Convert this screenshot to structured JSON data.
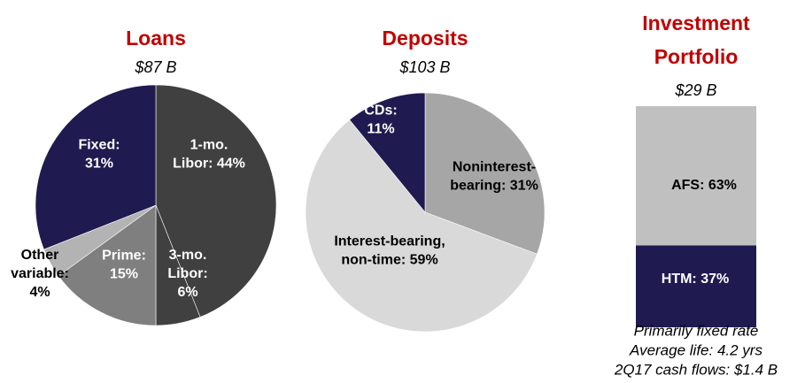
{
  "chart_data": [
    {
      "type": "pie",
      "title": [
        "Loans"
      ],
      "subtitle": "$87 B",
      "values": [
        44,
        6,
        15,
        4,
        31
      ],
      "value_labels": [
        [
          "1-mo.",
          "Libor: 44%"
        ],
        [
          "3-mo.",
          "Libor:",
          "6%"
        ],
        [
          "Prime:",
          "15%"
        ],
        [
          "Other",
          "variable:",
          "4%"
        ],
        [
          "Fixed:",
          "31%"
        ]
      ],
      "colors": [
        "#404040",
        "#404040",
        "#7f7f7f",
        "#b3b3b3",
        "#1f1a4f"
      ],
      "label_colors": [
        "#ffffff",
        "#ffffff",
        "#ffffff",
        "#000000",
        "#ffffff"
      ]
    },
    {
      "type": "pie",
      "title": [
        "Deposits"
      ],
      "subtitle": "$103 B",
      "values": [
        31,
        59,
        11
      ],
      "value_labels": [
        [
          "Noninterest-",
          "bearing: 31%"
        ],
        [
          "Interest-bearing,",
          "non-time: 59%"
        ],
        [
          "CDs:",
          "11%"
        ]
      ],
      "colors": [
        "#a6a6a6",
        "#d9d9d9",
        "#1f1a4f"
      ],
      "label_colors": [
        "#000000",
        "#000000",
        "#ffffff"
      ]
    },
    {
      "type": "bar",
      "title": [
        "Investment",
        "Portfolio"
      ],
      "subtitle": "$29 B",
      "values": [
        37,
        63
      ],
      "value_labels": [
        [
          "HTM: 37%"
        ],
        [
          "AFS: 63%"
        ]
      ],
      "colors": [
        "#1f1a4f",
        "#c0c0c0"
      ],
      "label_colors": [
        "#ffffff",
        "#000000"
      ],
      "ylim": [
        0,
        100
      ],
      "notes": [
        "Primarily fixed rate",
        "Average life: 4.2 yrs",
        "2Q17 cash flows: $1.4 B"
      ]
    }
  ]
}
